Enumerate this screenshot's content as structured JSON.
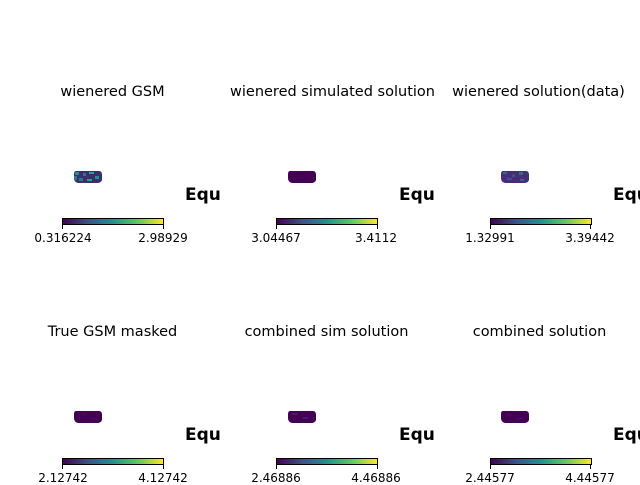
{
  "panels": [
    {
      "title": "wienered GSM",
      "side_text": "Equ",
      "cbar_min": "0.316224",
      "cbar_max": "2.98929",
      "blob_style": "noisy"
    },
    {
      "title": "wienered simulated solution",
      "side_text": "Equ",
      "cbar_min": "3.04467",
      "cbar_max": "3.4112",
      "blob_style": "flat"
    },
    {
      "title": "wienered solution(data)",
      "side_text": "Equ",
      "cbar_min": "1.32991",
      "cbar_max": "3.39442",
      "blob_style": "noisy"
    },
    {
      "title": "True GSM masked",
      "side_text": "Equ",
      "cbar_min": "2.12742",
      "cbar_max": "4.12742",
      "blob_style": "flat"
    },
    {
      "title": "combined sim solution",
      "side_text": "Equ",
      "cbar_min": "2.46886",
      "cbar_max": "4.46886",
      "blob_style": "flat"
    },
    {
      "title": "combined solution",
      "side_text": "Equ",
      "cbar_min": "2.44577",
      "cbar_max": "4.44577",
      "blob_style": "flat"
    }
  ],
  "colors": {
    "viridis_low": "#440154",
    "viridis_mid": "#21918c",
    "viridis_high": "#fde725"
  }
}
